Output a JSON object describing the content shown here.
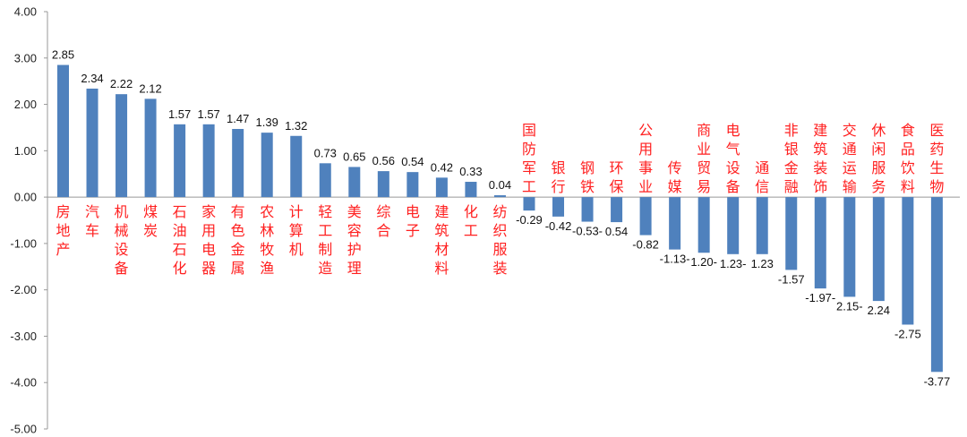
{
  "chart_data": {
    "type": "bar",
    "title": "",
    "xlabel": "",
    "ylabel": "",
    "ylim": [
      -5,
      4
    ],
    "yticks": [
      "4.00",
      "3.00",
      "2.00",
      "1.00",
      "0.00",
      "-1.00",
      "-2.00",
      "-3.00",
      "-4.00",
      "-5.00"
    ],
    "grid": false,
    "legend": "none",
    "bar_color": "#4f81bd",
    "label_color": "#ff2020",
    "categories": [
      "房地产",
      "汽车",
      "机械设备",
      "煤炭",
      "石油石化",
      "家用电器",
      "有色金属",
      "农林牧渔",
      "计算机",
      "轻工制造",
      "美容护理",
      "综合",
      "电子",
      "建筑材料",
      "化工",
      "纺织服装",
      "国防军工",
      "银行",
      "钢铁",
      "环保",
      "公用事业",
      "传媒",
      "商业贸易",
      "电气设备",
      "通信",
      "非银金融",
      "建筑装饰",
      "交通运输",
      "休闲服务",
      "食品饮料",
      "医药生物"
    ],
    "values": [
      2.85,
      2.34,
      2.22,
      2.12,
      1.57,
      1.57,
      1.47,
      1.39,
      1.32,
      0.73,
      0.65,
      0.56,
      0.54,
      0.42,
      0.33,
      0.04,
      -0.29,
      -0.42,
      -0.53,
      -0.54,
      -0.82,
      -1.13,
      -1.2,
      -1.23,
      -1.23,
      -1.57,
      -1.97,
      -2.15,
      -2.24,
      -2.75,
      -3.77
    ],
    "value_labels": [
      "2.85",
      "2.34",
      "2.22",
      "2.12",
      "1.57",
      "1.57",
      "1.47",
      "1.39",
      "1.32",
      "0.73",
      "0.65",
      "0.56",
      "0.54",
      "0.42",
      "0.33",
      "0.04",
      "-0.29",
      "-0.42",
      "-0.53-",
      "0.54",
      "-0.82",
      "-1.13-",
      "1.20-",
      "1.23-",
      "1.23",
      "-1.57",
      "-1.97-",
      "2.15-",
      "2.24",
      "-2.75",
      "-3.77"
    ]
  }
}
